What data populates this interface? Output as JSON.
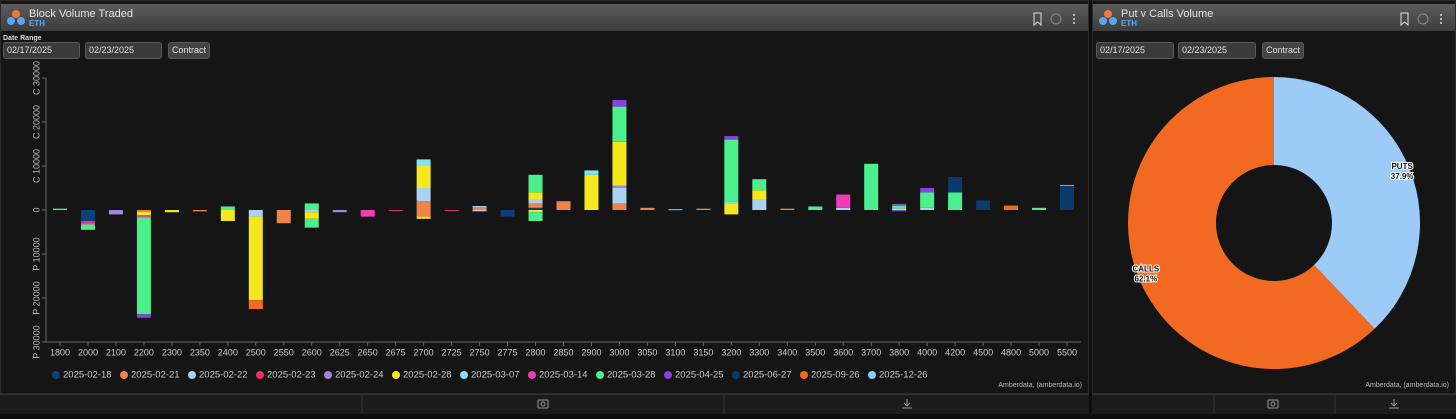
{
  "panels": [
    {
      "title": "Block Volume Traded",
      "subtitle": "ETH",
      "date_range_label": "Date Range",
      "start_date": "02/17/2025",
      "end_date": "02/23/2025",
      "button": "Contract",
      "footer": "Amberdata, (amberdata.io)"
    },
    {
      "title": "Put v Calls Volume",
      "subtitle": "ETH",
      "start_date": "02/17/2025",
      "end_date": "02/23/2025",
      "button": "Contract",
      "footer": "Amberdata, (amberdata.io)"
    }
  ],
  "chart_data": [
    {
      "type": "stacked_bar",
      "categories": [
        "1800",
        "2000",
        "2100",
        "2200",
        "2300",
        "2350",
        "2400",
        "2500",
        "2550",
        "2600",
        "2625",
        "2650",
        "2675",
        "2700",
        "2725",
        "2750",
        "2775",
        "2800",
        "2850",
        "2900",
        "3000",
        "3050",
        "3100",
        "3150",
        "3200",
        "3300",
        "3400",
        "3500",
        "3600",
        "3700",
        "3800",
        "4000",
        "4200",
        "4500",
        "4800",
        "5000",
        "5500"
      ],
      "ylim": [
        -30000,
        30000
      ],
      "yticks": [
        {
          "value": 30000,
          "label": "C 30000"
        },
        {
          "value": 20000,
          "label": "C 20000"
        },
        {
          "value": 10000,
          "label": "C 10000"
        },
        0,
        {
          "value": -10000,
          "label": "P 10000"
        },
        {
          "value": -20000,
          "label": "P 20000"
        },
        {
          "value": -30000,
          "label": "P 30000"
        }
      ],
      "series": [
        {
          "name": "2025-02-18",
          "color": "#0f3f7a",
          "calls": [
            0,
            0,
            0,
            0,
            0,
            0,
            0,
            0,
            0,
            0,
            0,
            0,
            0,
            0,
            0,
            0,
            0,
            500,
            0,
            0,
            0,
            0,
            0,
            0,
            0,
            0,
            0,
            0,
            0,
            0,
            0,
            0,
            0,
            0,
            0,
            0,
            0
          ],
          "puts": [
            0,
            -2500,
            0,
            0,
            0,
            0,
            0,
            0,
            0,
            0,
            0,
            0,
            0,
            0,
            0,
            0,
            -1500,
            0,
            0,
            0,
            0,
            0,
            -200,
            0,
            0,
            0,
            0,
            0,
            0,
            0,
            0,
            0,
            0,
            0,
            0,
            0,
            0
          ]
        },
        {
          "name": "2025-02-21",
          "color": "#f0834a",
          "calls": [
            0,
            0,
            0,
            0,
            0,
            0,
            0,
            0,
            0,
            0,
            0,
            0,
            0,
            2000,
            0,
            600,
            0,
            1000,
            2000,
            0,
            1500,
            500,
            0,
            300,
            0,
            0,
            300,
            0,
            0,
            0,
            0,
            0,
            0,
            0,
            0,
            0,
            0
          ],
          "puts": [
            0,
            0,
            0,
            -400,
            0,
            -300,
            0,
            0,
            -3000,
            0,
            0,
            0,
            0,
            -1500,
            0,
            0,
            0,
            0,
            0,
            0,
            0,
            0,
            0,
            0,
            0,
            0,
            0,
            0,
            0,
            0,
            0,
            0,
            0,
            0,
            0,
            0,
            0
          ]
        },
        {
          "name": "2025-02-22",
          "color": "#a9d3f5",
          "calls": [
            0,
            0,
            0,
            0,
            0,
            0,
            0,
            0,
            0,
            0,
            0,
            0,
            0,
            3000,
            0,
            300,
            0,
            1000,
            0,
            0,
            3500,
            0,
            0,
            0,
            0,
            2500,
            0,
            0,
            500,
            0,
            0,
            500,
            0,
            0,
            0,
            0,
            0
          ],
          "puts": [
            0,
            0,
            0,
            0,
            0,
            0,
            0,
            -1500,
            0,
            -500,
            0,
            0,
            0,
            0,
            0,
            -300,
            0,
            0,
            0,
            0,
            0,
            0,
            0,
            0,
            0,
            0,
            0,
            0,
            0,
            0,
            0,
            0,
            0,
            0,
            0,
            0,
            0
          ]
        },
        {
          "name": "2025-02-23",
          "color": "#f0306a",
          "calls": [
            0,
            0,
            0,
            0,
            0,
            0,
            0,
            0,
            0,
            0,
            0,
            0,
            0,
            0,
            0,
            0,
            0,
            0,
            0,
            0,
            0,
            0,
            0,
            0,
            0,
            0,
            0,
            0,
            0,
            0,
            0,
            0,
            0,
            0,
            0,
            0,
            0
          ],
          "puts": [
            0,
            -300,
            0,
            0,
            0,
            0,
            0,
            0,
            0,
            0,
            0,
            0,
            -200,
            0,
            -200,
            0,
            0,
            0,
            0,
            0,
            0,
            0,
            0,
            0,
            0,
            0,
            0,
            0,
            0,
            0,
            0,
            0,
            0,
            0,
            0,
            0,
            0
          ]
        },
        {
          "name": "2025-02-24",
          "color": "#a383e0",
          "calls": [
            0,
            0,
            0,
            0,
            0,
            0,
            0,
            0,
            0,
            0,
            0,
            0,
            0,
            0,
            0,
            0,
            0,
            0,
            0,
            0,
            500,
            0,
            0,
            0,
            0,
            0,
            0,
            0,
            0,
            0,
            0,
            0,
            0,
            0,
            0,
            0,
            0
          ],
          "puts": [
            0,
            0,
            -1000,
            0,
            0,
            0,
            0,
            0,
            0,
            0,
            -500,
            0,
            0,
            0,
            0,
            0,
            0,
            0,
            0,
            0,
            0,
            0,
            0,
            0,
            0,
            0,
            0,
            0,
            0,
            0,
            0,
            0,
            0,
            0,
            0,
            0,
            0
          ]
        },
        {
          "name": "2025-02-28",
          "color": "#f4e81c",
          "calls": [
            0,
            0,
            0,
            0,
            0,
            0,
            0,
            0,
            0,
            0,
            0,
            0,
            0,
            5000,
            0,
            0,
            0,
            1500,
            0,
            8000,
            10000,
            0,
            0,
            0,
            1500,
            2000,
            0,
            0,
            0,
            0,
            300,
            0,
            0,
            0,
            0,
            0,
            0
          ],
          "puts": [
            0,
            0,
            0,
            -800,
            -500,
            0,
            -2500,
            -19000,
            0,
            -1500,
            0,
            0,
            0,
            -500,
            0,
            0,
            0,
            -500,
            0,
            0,
            0,
            0,
            0,
            0,
            -1000,
            0,
            0,
            0,
            0,
            0,
            0,
            0,
            0,
            0,
            0,
            0,
            0
          ]
        },
        {
          "name": "2025-03-07",
          "color": "#80e2f4",
          "calls": [
            0,
            0,
            0,
            0,
            0,
            0,
            0,
            0,
            0,
            0,
            0,
            0,
            0,
            1500,
            0,
            0,
            0,
            0,
            0,
            1000,
            0,
            0,
            0,
            0,
            500,
            0,
            0,
            0,
            0,
            0,
            0,
            0,
            0,
            0,
            0,
            0,
            0
          ],
          "puts": [
            0,
            0,
            0,
            0,
            0,
            0,
            0,
            0,
            0,
            0,
            0,
            0,
            0,
            0,
            0,
            0,
            0,
            0,
            0,
            0,
            0,
            0,
            0,
            0,
            0,
            0,
            0,
            0,
            0,
            0,
            0,
            0,
            0,
            0,
            0,
            0,
            0
          ]
        },
        {
          "name": "2025-03-14",
          "color": "#f03cb6",
          "calls": [
            0,
            0,
            0,
            0,
            0,
            0,
            0,
            0,
            0,
            0,
            0,
            0,
            0,
            0,
            0,
            0,
            0,
            0,
            0,
            0,
            0,
            0,
            0,
            0,
            0,
            0,
            0,
            0,
            3000,
            0,
            0,
            0,
            0,
            0,
            0,
            0,
            0
          ],
          "puts": [
            0,
            -500,
            0,
            -500,
            0,
            0,
            0,
            0,
            0,
            0,
            0,
            -1500,
            0,
            0,
            0,
            0,
            0,
            0,
            0,
            0,
            0,
            0,
            0,
            0,
            0,
            0,
            0,
            0,
            0,
            0,
            0,
            0,
            0,
            0,
            0,
            0,
            0
          ]
        },
        {
          "name": "2025-03-28",
          "color": "#4af08c",
          "calls": [
            300,
            0,
            0,
            0,
            0,
            0,
            800,
            0,
            0,
            1500,
            0,
            0,
            0,
            0,
            0,
            0,
            0,
            4000,
            0,
            0,
            8000,
            0,
            200,
            0,
            14000,
            2500,
            0,
            800,
            0,
            10500,
            700,
            3500,
            4000,
            0,
            0,
            500,
            0
          ],
          "puts": [
            0,
            -1200,
            0,
            -22000,
            0,
            0,
            0,
            0,
            0,
            -2000,
            0,
            0,
            0,
            0,
            0,
            0,
            0,
            -2000,
            0,
            0,
            0,
            0,
            0,
            0,
            0,
            0,
            0,
            0,
            0,
            0,
            0,
            0,
            0,
            0,
            0,
            0,
            0
          ]
        },
        {
          "name": "2025-04-25",
          "color": "#8a40e0",
          "calls": [
            0,
            0,
            0,
            0,
            0,
            0,
            0,
            0,
            0,
            0,
            0,
            0,
            0,
            0,
            0,
            0,
            0,
            0,
            0,
            0,
            1500,
            0,
            0,
            0,
            800,
            0,
            0,
            0,
            0,
            0,
            400,
            1000,
            0,
            0,
            0,
            0,
            0
          ],
          "puts": [
            0,
            0,
            0,
            -800,
            0,
            0,
            0,
            0,
            0,
            0,
            0,
            0,
            0,
            0,
            0,
            0,
            0,
            0,
            0,
            0,
            0,
            0,
            0,
            0,
            0,
            0,
            0,
            0,
            0,
            0,
            -300,
            0,
            0,
            0,
            0,
            0,
            0
          ]
        },
        {
          "name": "2025-06-27",
          "color": "#0b3a6c",
          "calls": [
            0,
            0,
            0,
            0,
            0,
            0,
            0,
            0,
            0,
            0,
            0,
            0,
            0,
            0,
            0,
            0,
            0,
            0,
            0,
            0,
            0,
            0,
            0,
            0,
            0,
            0,
            0,
            0,
            0,
            0,
            0,
            0,
            3500,
            2200,
            0,
            0,
            5500
          ],
          "puts": [
            0,
            0,
            0,
            0,
            0,
            0,
            0,
            0,
            0,
            0,
            0,
            0,
            0,
            0,
            0,
            0,
            0,
            0,
            0,
            0,
            0,
            0,
            0,
            0,
            0,
            0,
            0,
            0,
            0,
            0,
            0,
            0,
            0,
            0,
            0,
            0,
            0
          ]
        },
        {
          "name": "2025-09-26",
          "color": "#f26b20",
          "calls": [
            0,
            0,
            0,
            0,
            0,
            0,
            0,
            0,
            0,
            0,
            0,
            0,
            0,
            0,
            0,
            0,
            0,
            0,
            0,
            0,
            0,
            0,
            0,
            0,
            0,
            0,
            0,
            0,
            0,
            0,
            0,
            0,
            0,
            0,
            1000,
            0,
            0
          ],
          "puts": [
            0,
            0,
            0,
            0,
            0,
            0,
            0,
            -2000,
            0,
            0,
            0,
            0,
            0,
            0,
            0,
            0,
            0,
            0,
            0,
            0,
            0,
            0,
            0,
            0,
            0,
            0,
            0,
            0,
            0,
            0,
            0,
            0,
            0,
            0,
            0,
            0,
            0
          ]
        },
        {
          "name": "2025-12-26",
          "color": "#8ec8f4",
          "calls": [
            0,
            0,
            0,
            0,
            0,
            0,
            0,
            0,
            0,
            0,
            0,
            0,
            0,
            0,
            0,
            0,
            0,
            0,
            0,
            0,
            0,
            0,
            0,
            0,
            0,
            0,
            0,
            0,
            0,
            0,
            0,
            0,
            0,
            0,
            0,
            0,
            200
          ],
          "puts": [
            0,
            0,
            0,
            0,
            0,
            0,
            0,
            0,
            0,
            0,
            0,
            0,
            0,
            0,
            0,
            0,
            0,
            0,
            0,
            0,
            0,
            0,
            0,
            0,
            0,
            0,
            0,
            0,
            0,
            0,
            0,
            0,
            0,
            0,
            0,
            0,
            0
          ]
        }
      ]
    },
    {
      "type": "donut",
      "categories": [
        "PUTS",
        "CALLS"
      ],
      "values": [
        37.9,
        62.1
      ],
      "value_labels": [
        "37.9%",
        "62.1%"
      ],
      "colors": [
        "#9ccbf8",
        "#f26a22"
      ]
    }
  ]
}
